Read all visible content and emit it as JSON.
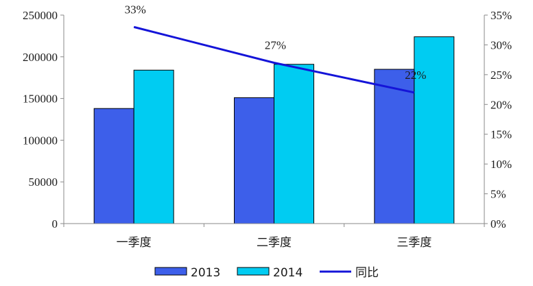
{
  "chart_data": {
    "type": "bar",
    "categories": [
      "一季度",
      "二季度",
      "三季度"
    ],
    "series": [
      {
        "name": "2013",
        "type": "bar",
        "axis": "left",
        "color": "#3D5FEA",
        "values": [
          138000,
          151000,
          185000
        ]
      },
      {
        "name": "2014",
        "type": "bar",
        "axis": "left",
        "color": "#00CCF2",
        "values": [
          184000,
          191000,
          224000
        ]
      },
      {
        "name": "同比",
        "type": "line",
        "axis": "right",
        "color": "#1414D8",
        "values": [
          0.33,
          0.27,
          0.22
        ],
        "labels": [
          "33%",
          "27%",
          "22%"
        ]
      }
    ],
    "title": "",
    "xlabel": "",
    "ylabel": "",
    "ylim": [
      0,
      250000
    ],
    "y_ticks": [
      "0",
      "50000",
      "100000",
      "150000",
      "200000",
      "250000"
    ],
    "y2lim": [
      0,
      0.35
    ],
    "y2_ticks": [
      "0%",
      "5%",
      "10%",
      "15%",
      "20%",
      "25%",
      "30%",
      "35%"
    ],
    "grid": false,
    "legend_position": "bottom"
  }
}
